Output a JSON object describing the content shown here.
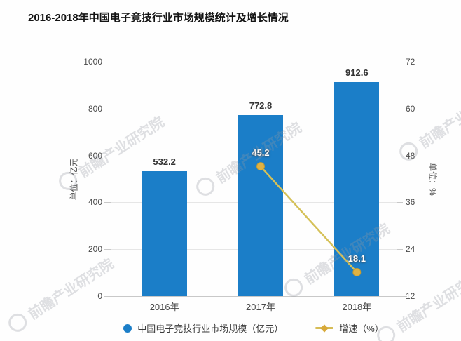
{
  "title": "2016-2018年中国电子竞技行业市场规模统计及增长情况",
  "watermark": {
    "text": "前瞻产业研究院"
  },
  "legend": [
    {
      "label": "中国电子竞技行业市场规模（亿元）",
      "marker": "circle",
      "color": "#1b7ec8"
    },
    {
      "label": "增速（%）",
      "marker": "line-diamond",
      "color": "#d8a93a",
      "line_color": "#d6bc55"
    }
  ],
  "chart_data": {
    "type": "bar",
    "categories": [
      "2016年",
      "2017年",
      "2018年"
    ],
    "series": [
      {
        "name": "中国电子竞技行业市场规模（亿元）",
        "type": "bar",
        "axis": "left",
        "values": [
          532.2,
          772.8,
          912.6
        ],
        "color": "#1b7ec8"
      },
      {
        "name": "增速（%）",
        "type": "line",
        "axis": "right",
        "values": [
          null,
          45.2,
          18.1
        ],
        "color": "#d5c158",
        "marker_color": "#dfb243",
        "marker_stroke": "#c59b2f"
      }
    ],
    "left_axis": {
      "title": "单位：亿元",
      "min": 0,
      "max": 1000,
      "ticks": [
        0,
        200,
        400,
        600,
        800,
        1000
      ]
    },
    "right_axis": {
      "title": "单位：%",
      "min": 12,
      "max": 72,
      "ticks": [
        12,
        24,
        36,
        48,
        60,
        72
      ]
    },
    "grid": true,
    "legend_position": "bottom",
    "colors": {
      "grid": "#e6e6e6",
      "axis": "#c8c8c8",
      "label": "#333333",
      "white_label": "#ffffff"
    }
  }
}
